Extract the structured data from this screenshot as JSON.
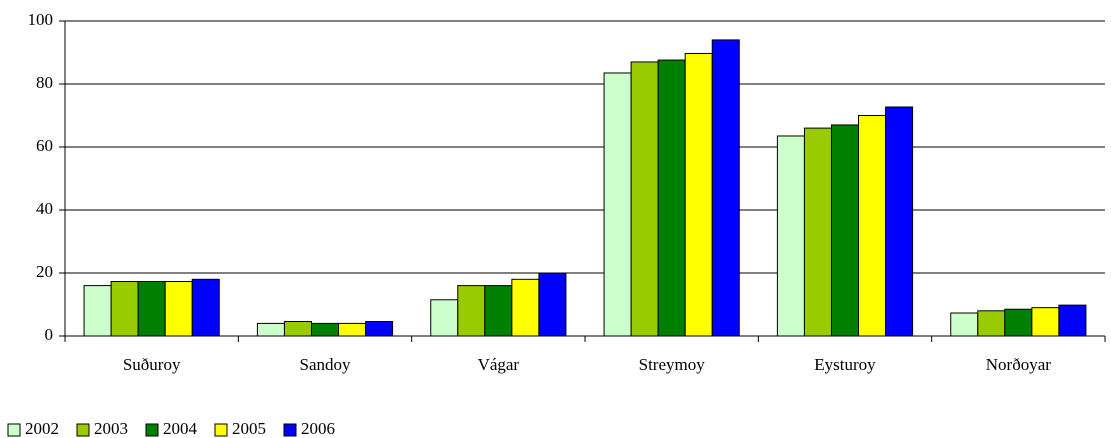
{
  "chart_data": {
    "type": "bar",
    "categories": [
      "Suðuroy",
      "Sandoy",
      "Vágar",
      "Streymoy",
      "Eysturoy",
      "Norðoyar"
    ],
    "series": [
      {
        "name": "2002",
        "color": "#ccffcc",
        "values": [
          16,
          4,
          11.5,
          83.5,
          63.5,
          7.3
        ]
      },
      {
        "name": "2003",
        "color": "#99cc00",
        "values": [
          17.3,
          4.6,
          16,
          87,
          66,
          8
        ]
      },
      {
        "name": "2004",
        "color": "#008000",
        "values": [
          17.3,
          4,
          16,
          87.6,
          67,
          8.5
        ]
      },
      {
        "name": "2005",
        "color": "#ffff00",
        "values": [
          17.3,
          4,
          18,
          89.7,
          70,
          9
        ]
      },
      {
        "name": "2006",
        "color": "#0000ff",
        "values": [
          18,
          4.6,
          20,
          94,
          72.7,
          9.8
        ]
      }
    ],
    "ylim": [
      0,
      100
    ],
    "yticks": [
      0,
      20,
      40,
      60,
      80,
      100
    ],
    "grid": true,
    "legend": "bottom"
  }
}
